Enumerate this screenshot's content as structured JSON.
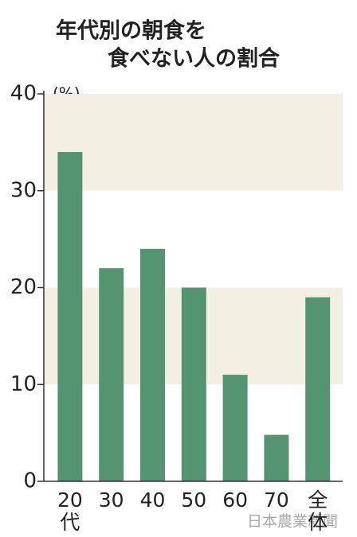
{
  "chart_data": {
    "type": "bar",
    "title": [
      "年代別の朝食を",
      "食べない人の割合"
    ],
    "unit": "(%)",
    "categories": [
      "20代",
      "30",
      "40",
      "50",
      "60",
      "70",
      "全体"
    ],
    "values": [
      34,
      22,
      24,
      20,
      11,
      4.8,
      19
    ],
    "color": "#559471",
    "band_color": "#f3f0e3",
    "ylim": [
      0,
      40
    ],
    "yticks": [
      0,
      10,
      20,
      30,
      40
    ],
    "credit": "日本農業新聞"
  }
}
